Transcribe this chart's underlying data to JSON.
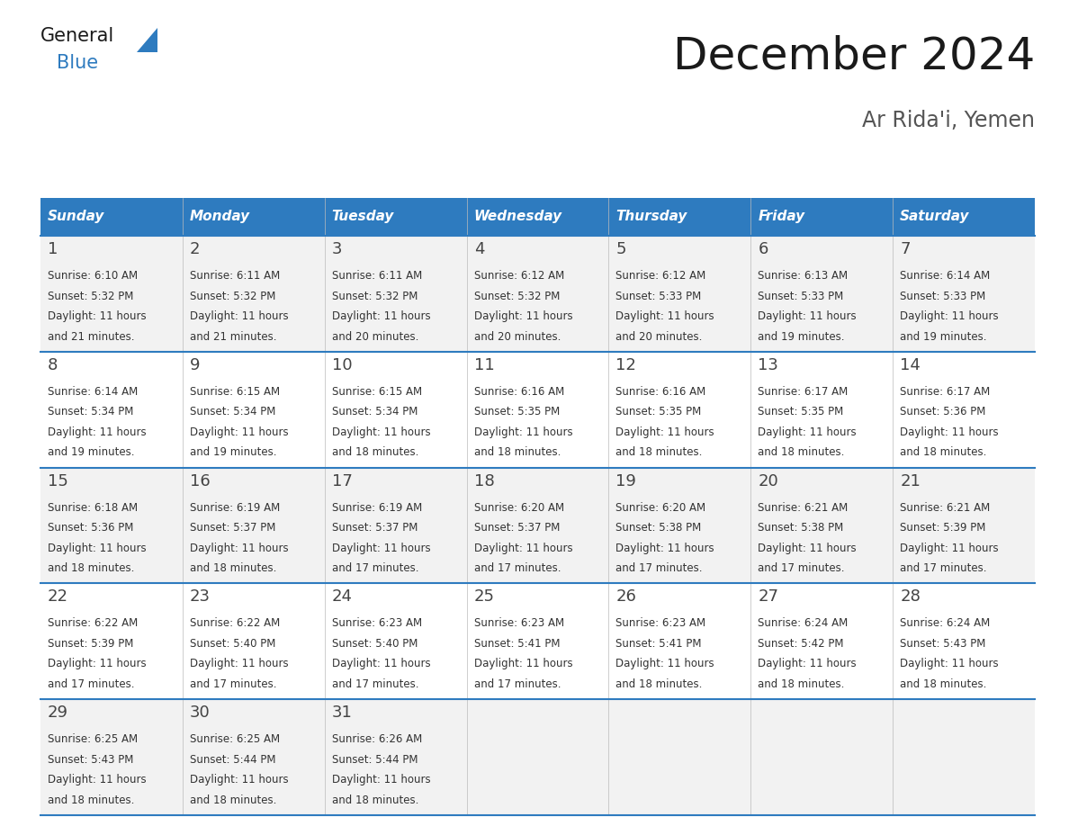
{
  "title": "December 2024",
  "subtitle": "Ar Rida'i, Yemen",
  "days_of_week": [
    "Sunday",
    "Monday",
    "Tuesday",
    "Wednesday",
    "Thursday",
    "Friday",
    "Saturday"
  ],
  "header_bg": "#2E7BBF",
  "header_text": "#FFFFFF",
  "cell_bg_odd": "#F2F2F2",
  "cell_bg_even": "#FFFFFF",
  "grid_line_color": "#2E7BBF",
  "title_color": "#1a1a1a",
  "subtitle_color": "#555555",
  "day_num_color": "#444444",
  "cell_text_color": "#333333",
  "logo_general_color": "#1a1a1a",
  "logo_blue_color": "#2E7BBF",
  "calendar_data": [
    [
      {
        "day": 1,
        "sunrise": "6:10 AM",
        "sunset": "5:32 PM",
        "daylight_hours": 11,
        "daylight_minutes": 21
      },
      {
        "day": 2,
        "sunrise": "6:11 AM",
        "sunset": "5:32 PM",
        "daylight_hours": 11,
        "daylight_minutes": 21
      },
      {
        "day": 3,
        "sunrise": "6:11 AM",
        "sunset": "5:32 PM",
        "daylight_hours": 11,
        "daylight_minutes": 20
      },
      {
        "day": 4,
        "sunrise": "6:12 AM",
        "sunset": "5:32 PM",
        "daylight_hours": 11,
        "daylight_minutes": 20
      },
      {
        "day": 5,
        "sunrise": "6:12 AM",
        "sunset": "5:33 PM",
        "daylight_hours": 11,
        "daylight_minutes": 20
      },
      {
        "day": 6,
        "sunrise": "6:13 AM",
        "sunset": "5:33 PM",
        "daylight_hours": 11,
        "daylight_minutes": 19
      },
      {
        "day": 7,
        "sunrise": "6:14 AM",
        "sunset": "5:33 PM",
        "daylight_hours": 11,
        "daylight_minutes": 19
      }
    ],
    [
      {
        "day": 8,
        "sunrise": "6:14 AM",
        "sunset": "5:34 PM",
        "daylight_hours": 11,
        "daylight_minutes": 19
      },
      {
        "day": 9,
        "sunrise": "6:15 AM",
        "sunset": "5:34 PM",
        "daylight_hours": 11,
        "daylight_minutes": 19
      },
      {
        "day": 10,
        "sunrise": "6:15 AM",
        "sunset": "5:34 PM",
        "daylight_hours": 11,
        "daylight_minutes": 18
      },
      {
        "day": 11,
        "sunrise": "6:16 AM",
        "sunset": "5:35 PM",
        "daylight_hours": 11,
        "daylight_minutes": 18
      },
      {
        "day": 12,
        "sunrise": "6:16 AM",
        "sunset": "5:35 PM",
        "daylight_hours": 11,
        "daylight_minutes": 18
      },
      {
        "day": 13,
        "sunrise": "6:17 AM",
        "sunset": "5:35 PM",
        "daylight_hours": 11,
        "daylight_minutes": 18
      },
      {
        "day": 14,
        "sunrise": "6:17 AM",
        "sunset": "5:36 PM",
        "daylight_hours": 11,
        "daylight_minutes": 18
      }
    ],
    [
      {
        "day": 15,
        "sunrise": "6:18 AM",
        "sunset": "5:36 PM",
        "daylight_hours": 11,
        "daylight_minutes": 18
      },
      {
        "day": 16,
        "sunrise": "6:19 AM",
        "sunset": "5:37 PM",
        "daylight_hours": 11,
        "daylight_minutes": 18
      },
      {
        "day": 17,
        "sunrise": "6:19 AM",
        "sunset": "5:37 PM",
        "daylight_hours": 11,
        "daylight_minutes": 17
      },
      {
        "day": 18,
        "sunrise": "6:20 AM",
        "sunset": "5:37 PM",
        "daylight_hours": 11,
        "daylight_minutes": 17
      },
      {
        "day": 19,
        "sunrise": "6:20 AM",
        "sunset": "5:38 PM",
        "daylight_hours": 11,
        "daylight_minutes": 17
      },
      {
        "day": 20,
        "sunrise": "6:21 AM",
        "sunset": "5:38 PM",
        "daylight_hours": 11,
        "daylight_minutes": 17
      },
      {
        "day": 21,
        "sunrise": "6:21 AM",
        "sunset": "5:39 PM",
        "daylight_hours": 11,
        "daylight_minutes": 17
      }
    ],
    [
      {
        "day": 22,
        "sunrise": "6:22 AM",
        "sunset": "5:39 PM",
        "daylight_hours": 11,
        "daylight_minutes": 17
      },
      {
        "day": 23,
        "sunrise": "6:22 AM",
        "sunset": "5:40 PM",
        "daylight_hours": 11,
        "daylight_minutes": 17
      },
      {
        "day": 24,
        "sunrise": "6:23 AM",
        "sunset": "5:40 PM",
        "daylight_hours": 11,
        "daylight_minutes": 17
      },
      {
        "day": 25,
        "sunrise": "6:23 AM",
        "sunset": "5:41 PM",
        "daylight_hours": 11,
        "daylight_minutes": 17
      },
      {
        "day": 26,
        "sunrise": "6:23 AM",
        "sunset": "5:41 PM",
        "daylight_hours": 11,
        "daylight_minutes": 18
      },
      {
        "day": 27,
        "sunrise": "6:24 AM",
        "sunset": "5:42 PM",
        "daylight_hours": 11,
        "daylight_minutes": 18
      },
      {
        "day": 28,
        "sunrise": "6:24 AM",
        "sunset": "5:43 PM",
        "daylight_hours": 11,
        "daylight_minutes": 18
      }
    ],
    [
      {
        "day": 29,
        "sunrise": "6:25 AM",
        "sunset": "5:43 PM",
        "daylight_hours": 11,
        "daylight_minutes": 18
      },
      {
        "day": 30,
        "sunrise": "6:25 AM",
        "sunset": "5:44 PM",
        "daylight_hours": 11,
        "daylight_minutes": 18
      },
      {
        "day": 31,
        "sunrise": "6:26 AM",
        "sunset": "5:44 PM",
        "daylight_hours": 11,
        "daylight_minutes": 18
      },
      null,
      null,
      null,
      null
    ]
  ]
}
